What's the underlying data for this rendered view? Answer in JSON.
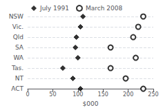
{
  "chart_data": {
    "type": "dot",
    "orientation": "horizontal",
    "categories": [
      "NSW",
      "Vic.",
      "Qld",
      "SA",
      "WA",
      "Tas.",
      "NT",
      "ACT"
    ],
    "series": [
      {
        "name": "July 1991",
        "color": "#000000",
        "marker": "diamond",
        "values": [
          110,
          105,
          97,
          95,
          100,
          70,
          90,
          105
        ]
      },
      {
        "name": "March 2008",
        "color": "#000000",
        "marker": "open_circle",
        "values": [
          230,
          220,
          210,
          165,
          215,
          165,
          195,
          230
        ]
      }
    ],
    "xlabel": "$000",
    "xlim": [
      0,
      250
    ],
    "xticks": [
      0,
      50,
      100,
      150,
      200,
      250
    ],
    "grid": true,
    "legend": "upper left"
  }
}
